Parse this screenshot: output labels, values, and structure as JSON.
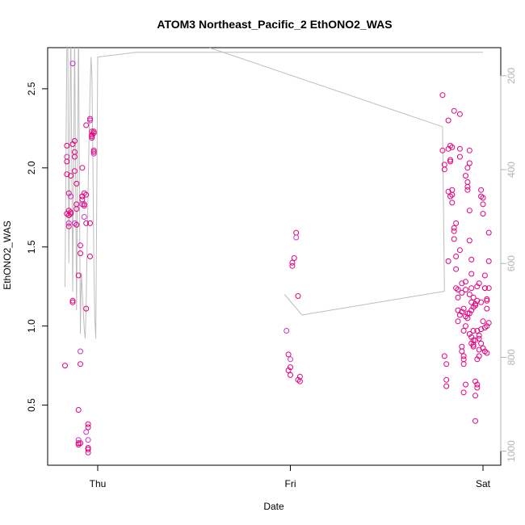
{
  "chart_data": {
    "type": "scatter",
    "title": "ATOM3 Northeast_Pacific_2 EthONO2_WAS",
    "xlabel": "Date",
    "ylabel": "EthONO2_WAS",
    "x_ticks": [
      "Thu",
      "Fri",
      "Sat"
    ],
    "y_ticks": [
      "0.5",
      "1.0",
      "1.5",
      "2.0",
      "2.5"
    ],
    "y2_ticks": [
      "200",
      "400",
      "600",
      "800",
      "1000"
    ],
    "ylim": [
      0.12,
      2.76
    ],
    "y2lim": [
      1030,
      140
    ],
    "xlim_days": [
      -0.2,
      2.05
    ],
    "y2_reversed": true,
    "grid": false,
    "colors": {
      "points": "#e6007e",
      "points_alt": "#cc33cc",
      "altitude_line": "#bdbdbd",
      "axis": "#000000",
      "right_axis": "#b3b3b3"
    },
    "series": [
      {
        "marker": "open-circle",
        "x_days": [
          -0.17,
          -0.16,
          -0.16,
          -0.16,
          -0.16,
          -0.16,
          -0.15,
          -0.15,
          -0.15,
          -0.15,
          -0.15,
          -0.14,
          -0.14,
          -0.14,
          -0.14,
          -0.13,
          -0.13,
          -0.13,
          -0.13,
          -0.12,
          -0.12,
          -0.12,
          -0.12,
          -0.12,
          -0.11,
          -0.11,
          -0.11,
          -0.11,
          -0.11,
          -0.1,
          -0.1,
          -0.1,
          -0.1,
          -0.1,
          -0.09,
          -0.09,
          -0.09,
          -0.09,
          -0.09,
          -0.08,
          -0.08,
          -0.08,
          -0.08,
          -0.08,
          -0.07,
          -0.07,
          -0.07,
          -0.07,
          -0.06,
          -0.06,
          -0.06,
          -0.06,
          -0.06,
          -0.05,
          -0.05,
          -0.05,
          -0.05,
          -0.05,
          -0.05,
          -0.04,
          -0.04,
          -0.04,
          -0.04,
          -0.03,
          -0.03,
          -0.03,
          -0.03,
          -0.02,
          -0.02,
          -0.02,
          -0.02,
          -0.02,
          0.98,
          0.99,
          0.99,
          1.0,
          1.0,
          1.0,
          1.01,
          1.01,
          1.02,
          1.03,
          1.03,
          1.04,
          1.04,
          1.05,
          1.05
        ],
        "y": [
          0.75,
          2.14,
          2.07,
          2.04,
          1.96,
          1.71,
          1.7,
          1.65,
          1.63,
          1.84,
          1.73,
          1.71,
          1.82,
          1.95,
          1.72,
          1.15,
          1.16,
          2.66,
          2.15,
          2.17,
          1.98,
          2.1,
          1.65,
          2.07,
          1.9,
          1.77,
          1.74,
          1.64,
          1.64,
          0.47,
          0.25,
          1.32,
          0.28,
          0.26,
          1.46,
          0.26,
          0.76,
          0.84,
          1.51,
          2.0,
          1.82,
          1.8,
          1.77,
          1.82,
          1.76,
          1.77,
          1.84,
          1.69,
          2.27,
          1.65,
          1.11,
          1.83,
          0.33,
          0.36,
          0.23,
          0.22,
          0.2,
          0.28,
          0.38,
          1.44,
          1.65,
          2.31,
          2.3,
          2.23,
          2.21,
          2.2,
          2.19,
          2.09,
          2.11,
          2.22,
          2.23,
          2.1,
          0.97,
          0.82,
          0.72,
          0.69,
          0.74,
          0.79,
          1.38,
          1.4,
          1.43,
          1.59,
          1.56,
          1.19,
          0.66,
          0.65,
          0.68
        ]
      },
      {
        "marker": "open-circle",
        "x_days": [
          1.79,
          1.79,
          1.8,
          1.8,
          1.8,
          1.81,
          1.81,
          1.81,
          1.82,
          1.82,
          1.82,
          1.82,
          1.83,
          1.83,
          1.83,
          1.83,
          1.84,
          1.84,
          1.84,
          1.84,
          1.85,
          1.85,
          1.85,
          1.85,
          1.86,
          1.86,
          1.86,
          1.86,
          1.87,
          1.87,
          1.87,
          1.87,
          1.88,
          1.88,
          1.88,
          1.88,
          1.89,
          1.89,
          1.89,
          1.89,
          1.9,
          1.9,
          1.9,
          1.9,
          1.91,
          1.91,
          1.91,
          1.91,
          1.92,
          1.92,
          1.92,
          1.92,
          1.93,
          1.93,
          1.93,
          1.93,
          1.94,
          1.94,
          1.94,
          1.94,
          1.95,
          1.95,
          1.95,
          1.96,
          1.96,
          1.96,
          1.97,
          1.97,
          1.97,
          1.98,
          1.98,
          1.98,
          1.99,
          1.99,
          1.99,
          2.0,
          2.0,
          2.0,
          2.01,
          2.01,
          2.01,
          2.02,
          2.02,
          2.02,
          2.03,
          2.03,
          2.03
        ],
        "y": [
          2.46,
          2.11,
          1.99,
          2.02,
          0.81,
          0.66,
          0.62,
          0.76,
          1.41,
          2.3,
          2.12,
          1.85,
          2.05,
          1.82,
          2.14,
          2.04,
          2.13,
          1.83,
          1.86,
          1.78,
          2.36,
          1.62,
          1.6,
          1.55,
          1.36,
          1.44,
          1.65,
          1.24,
          1.23,
          1.1,
          1.03,
          1.18,
          2.12,
          2.07,
          2.34,
          1.48,
          1.27,
          1.21,
          0.87,
          0.84,
          0.81,
          0.79,
          0.76,
          0.58,
          0.63,
          1.28,
          1.23,
          1.95,
          1.91,
          1.88,
          1.86,
          2.0,
          2.11,
          2.03,
          1.73,
          1.54,
          1.42,
          1.33,
          1.15,
          0.89,
          0.87,
          0.97,
          0.91,
          0.4,
          0.56,
          0.65,
          0.61,
          0.63,
          0.79,
          0.81,
          0.92,
          0.85,
          0.98,
          1.86,
          1.82,
          1.81,
          1.77,
          1.71,
          1.32,
          1.24,
          1.24,
          1.16,
          1.17,
          1.11,
          1.24,
          1.59,
          1.41
        ]
      },
      {
        "marker": "open-circle",
        "x_days": [
          1.88,
          1.89,
          1.9,
          1.91,
          1.92,
          1.93,
          1.94,
          1.95,
          1.96,
          1.97,
          1.98,
          1.99,
          2.0,
          2.01,
          2.02,
          2.03,
          1.93,
          1.94,
          1.95,
          1.96,
          1.97,
          1.98,
          1.99,
          2.0,
          2.01,
          2.02,
          1.9,
          1.91,
          1.92,
          1.93,
          1.94,
          1.95,
          1.96,
          1.97
        ],
        "y": [
          1.07,
          1.09,
          1.11,
          1.06,
          1.08,
          1.2,
          1.24,
          1.18,
          1.13,
          1.25,
          1.27,
          1.15,
          1.03,
          0.99,
          1.0,
          1.02,
          0.95,
          0.93,
          0.88,
          0.91,
          0.97,
          0.94,
          0.89,
          0.86,
          0.84,
          0.83,
          0.97,
          1.0,
          1.05,
          1.08,
          1.1,
          1.12,
          1.14,
          1.16
        ]
      }
    ],
    "altitude_trace": {
      "x_days": [
        -0.17,
        -0.16,
        -0.155,
        -0.15,
        -0.14,
        -0.13,
        -0.12,
        -0.11,
        -0.1,
        -0.09,
        -0.085,
        -0.08,
        -0.075,
        -0.07,
        -0.065,
        -0.06,
        -0.055,
        -0.05,
        -0.045,
        -0.04,
        -0.035,
        -0.03,
        -0.025,
        -0.02,
        -0.015,
        -0.01,
        0.0,
        0.2,
        0.4,
        0.6,
        0.8,
        1.0,
        1.2,
        1.4,
        1.6,
        1.76,
        1.78,
        1.79,
        1.8,
        1.81,
        1.82,
        1.83,
        1.84,
        1.845,
        1.85,
        1.855,
        1.86,
        1.865,
        1.87,
        1.875,
        1.88,
        1.885,
        1.89,
        1.895,
        1.9,
        1.905,
        1.91,
        1.915,
        1.92,
        1.925,
        1.93,
        1.935,
        1.94,
        1.945,
        1.95,
        1.955,
        1.96,
        1.965,
        1.97,
        1.975,
        1.98,
        1.985,
        1.99,
        1.995,
        2.0
      ],
      "y2": [
        650,
        120,
        130,
        600,
        80,
        660,
        110,
        700,
        90,
        750,
        620,
        660,
        700,
        740,
        760,
        690,
        560,
        440,
        330,
        230,
        160,
        200,
        380,
        600,
        720,
        760,
        160,
        150,
        150,
        150,
        150,
        150,
        150,
        150,
        150,
        150,
        150,
        150,
        150,
        150,
        150,
        150,
        150,
        150,
        150,
        150,
        150,
        150,
        150,
        150,
        150,
        150,
        150,
        150,
        150,
        150,
        150,
        150,
        150,
        150,
        150,
        150,
        150,
        150,
        150,
        150,
        150,
        150,
        150,
        150,
        150,
        150,
        150,
        150,
        150
      ]
    }
  }
}
